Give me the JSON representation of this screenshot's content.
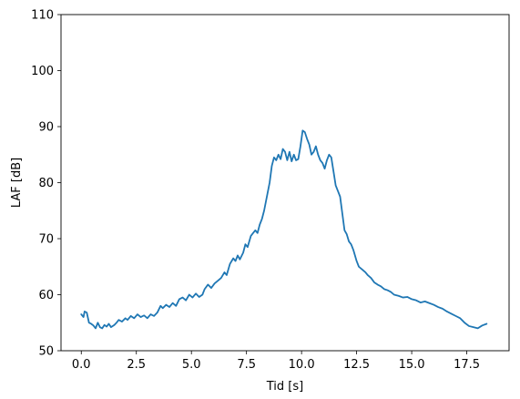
{
  "chart_data": {
    "type": "line",
    "title": "",
    "xlabel": "Tid [s]",
    "ylabel": "LAF [dB]",
    "xlim": [
      -0.92,
      19.42
    ],
    "ylim": [
      50,
      110
    ],
    "xticks": [
      0.0,
      2.5,
      5.0,
      7.5,
      10.0,
      12.5,
      15.0,
      17.5
    ],
    "xtick_labels": [
      "0.0",
      "2.5",
      "5.0",
      "7.5",
      "10.0",
      "12.5",
      "15.0",
      "17.5"
    ],
    "yticks": [
      50,
      60,
      70,
      80,
      90,
      100,
      110
    ],
    "ytick_labels": [
      "50",
      "60",
      "70",
      "80",
      "90",
      "100",
      "110"
    ],
    "grid": false,
    "legend": "none",
    "series": [
      {
        "color": "#1f77b4",
        "x": [
          0.0,
          0.1,
          0.15,
          0.25,
          0.35,
          0.45,
          0.55,
          0.65,
          0.75,
          0.85,
          0.95,
          1.05,
          1.15,
          1.25,
          1.35,
          1.5,
          1.6,
          1.7,
          1.85,
          2.0,
          2.1,
          2.25,
          2.4,
          2.55,
          2.7,
          2.85,
          3.0,
          3.15,
          3.3,
          3.45,
          3.6,
          3.7,
          3.85,
          4.0,
          4.15,
          4.3,
          4.45,
          4.6,
          4.75,
          4.9,
          5.05,
          5.2,
          5.35,
          5.5,
          5.6,
          5.75,
          5.9,
          6.05,
          6.2,
          6.35,
          6.5,
          6.6,
          6.75,
          6.9,
          7.0,
          7.1,
          7.2,
          7.35,
          7.45,
          7.55,
          7.7,
          7.8,
          7.9,
          8.0,
          8.1,
          8.2,
          8.3,
          8.45,
          8.55,
          8.65,
          8.75,
          8.85,
          8.95,
          9.05,
          9.15,
          9.25,
          9.35,
          9.45,
          9.55,
          9.65,
          9.75,
          9.85,
          9.95,
          10.05,
          10.15,
          10.25,
          10.35,
          10.45,
          10.55,
          10.65,
          10.75,
          10.85,
          10.95,
          11.05,
          11.15,
          11.25,
          11.35,
          11.45,
          11.55,
          11.65,
          11.75,
          11.85,
          11.95,
          12.05,
          12.15,
          12.25,
          12.35,
          12.5,
          12.6,
          12.75,
          12.9,
          13.0,
          13.15,
          13.3,
          13.45,
          13.6,
          13.75,
          13.9,
          14.05,
          14.2,
          14.4,
          14.6,
          14.8,
          15.0,
          15.2,
          15.4,
          15.6,
          15.8,
          16.0,
          16.2,
          16.4,
          16.6,
          16.8,
          17.0,
          17.2,
          17.4,
          17.6,
          17.8,
          18.0,
          18.2,
          18.4
        ],
        "y": [
          56.5,
          56.0,
          57.0,
          56.8,
          55.0,
          54.8,
          54.5,
          54.0,
          55.0,
          54.2,
          54.0,
          54.6,
          54.3,
          54.8,
          54.2,
          54.6,
          55.0,
          55.5,
          55.2,
          55.8,
          55.5,
          56.2,
          55.8,
          56.5,
          56.0,
          56.3,
          55.8,
          56.5,
          56.2,
          56.8,
          58.0,
          57.6,
          58.2,
          57.8,
          58.5,
          58.0,
          59.2,
          59.5,
          59.0,
          60.0,
          59.5,
          60.2,
          59.6,
          60.0,
          61.0,
          61.8,
          61.2,
          62.0,
          62.5,
          63.0,
          64.0,
          63.5,
          65.5,
          66.5,
          66.0,
          67.0,
          66.3,
          67.5,
          69.0,
          68.5,
          70.5,
          71.0,
          71.5,
          71.0,
          72.5,
          73.5,
          75.0,
          78.0,
          80.0,
          83.0,
          84.5,
          84.0,
          85.0,
          84.2,
          86.0,
          85.5,
          84.0,
          85.5,
          83.8,
          85.0,
          84.0,
          84.2,
          86.5,
          89.3,
          89.0,
          87.8,
          86.8,
          85.0,
          85.5,
          86.5,
          85.0,
          84.0,
          83.5,
          82.5,
          84.0,
          85.0,
          84.5,
          82.0,
          79.5,
          78.5,
          77.5,
          74.5,
          71.5,
          70.8,
          69.5,
          69.0,
          68.0,
          66.0,
          65.0,
          64.5,
          64.0,
          63.5,
          63.0,
          62.2,
          61.8,
          61.5,
          61.0,
          60.8,
          60.5,
          60.0,
          59.8,
          59.5,
          59.6,
          59.2,
          59.0,
          58.6,
          58.8,
          58.5,
          58.2,
          57.8,
          57.5,
          57.0,
          56.6,
          56.2,
          55.8,
          55.0,
          54.4,
          54.2,
          54.0,
          54.5,
          54.8
        ]
      }
    ]
  }
}
